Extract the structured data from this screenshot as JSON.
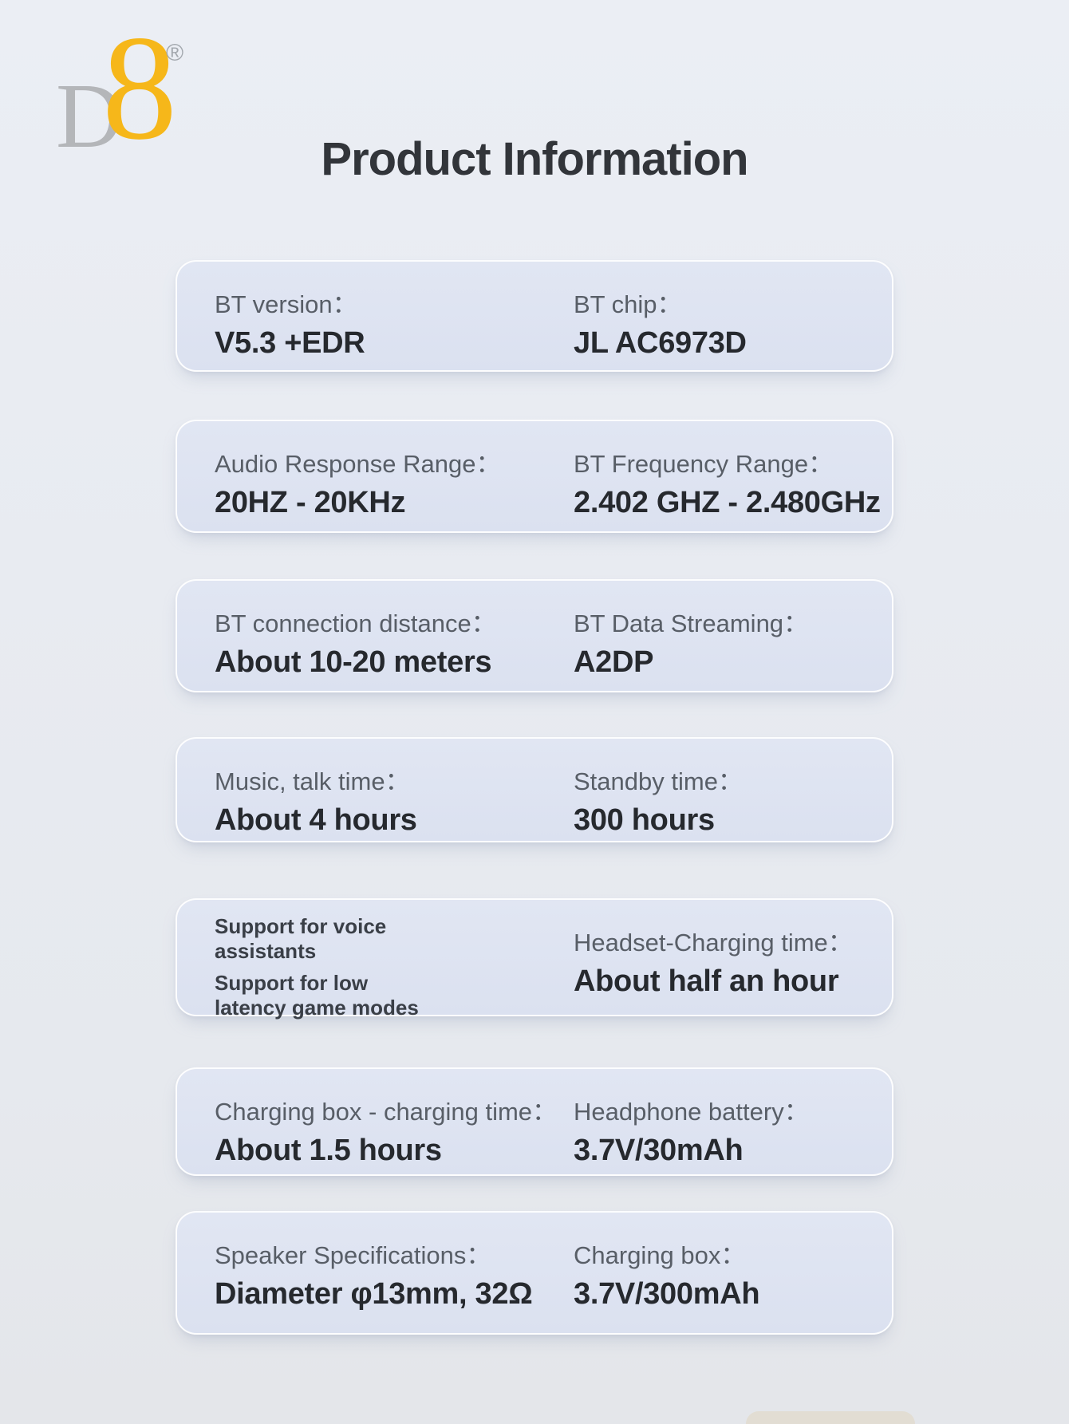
{
  "brand": {
    "letter_d": "D",
    "digit_8": "8",
    "registered_mark": "®"
  },
  "title": "Product Information",
  "cards": [
    {
      "left": {
        "label": "BT version：",
        "value": "V5.3 +EDR"
      },
      "right": {
        "label": "BT chip：",
        "value": "JL AC6973D"
      }
    },
    {
      "left": {
        "label": "Audio Response Range：",
        "value": "20HZ - 20KHz"
      },
      "right": {
        "label": "BT Frequency Range：",
        "value": "2.402 GHZ - 2.480GHz"
      }
    },
    {
      "left": {
        "label": "BT connection distance：",
        "value": "About 10-20 meters"
      },
      "right": {
        "label": "BT Data Streaming：",
        "value": "A2DP"
      }
    },
    {
      "left": {
        "label": "Music, talk time：",
        "value": "About 4 hours"
      },
      "right": {
        "label": "Standby time：",
        "value": "300 hours"
      }
    },
    {
      "left": {
        "lines": [
          "Support for voice\nassistants",
          "Support for low\nlatency game modes"
        ]
      },
      "right": {
        "label": "Headset-Charging time：",
        "value": "About half an hour"
      }
    },
    {
      "left": {
        "label": "Charging box - charging time：",
        "value": "About 1.5 hours"
      },
      "right": {
        "label": "Headphone battery：",
        "value": "3.7V/30mAh"
      }
    },
    {
      "left": {
        "label": "Speaker Specifications：",
        "value": "Diameter φ13mm, 32Ω"
      },
      "right": {
        "label": "Charging box：",
        "value": "3.7V/300mAh"
      }
    }
  ],
  "colors": {
    "logo_gray": "#b4b6b9",
    "logo_gold": "#f6b71a",
    "title": "#32353a",
    "label": "#585e67",
    "value": "#26292e",
    "card_background": "#dde3f1",
    "card_border": "#ffffff",
    "page_background": "#e9ecf2"
  }
}
